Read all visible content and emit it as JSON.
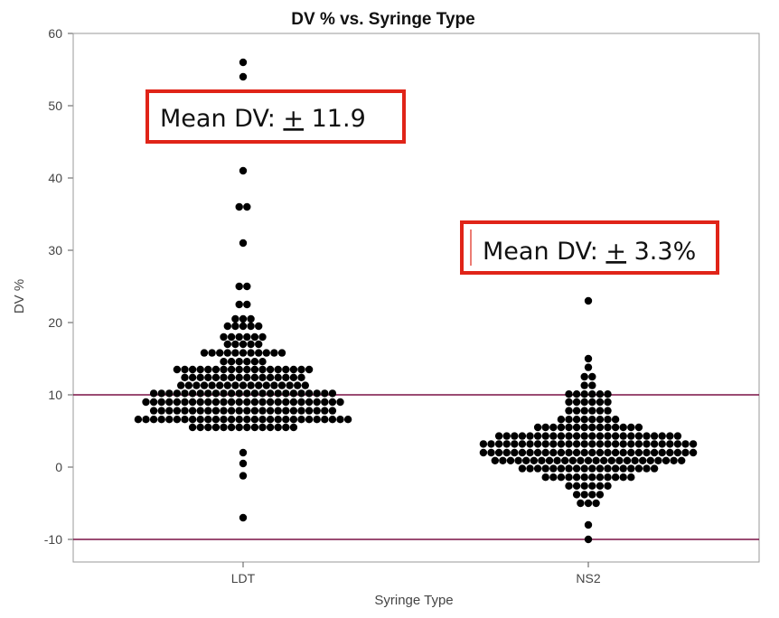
{
  "colors": {
    "point": "#000000",
    "reference_line": "#7a1045",
    "annotation_border": "#e02418",
    "frame": "#9a9a9a"
  },
  "chart_data": {
    "type": "scatter",
    "title": "DV % vs. Syringe Type",
    "xlabel": "Syringe Type",
    "ylabel": "DV %",
    "categories": [
      "LDT",
      "NS2"
    ],
    "ylim": [
      -13,
      60
    ],
    "yticks": [
      -10,
      0,
      10,
      20,
      30,
      40,
      50,
      60
    ],
    "grid": false,
    "reference_lines_y": [
      10,
      -10
    ],
    "series": [
      {
        "category": "LDT",
        "values_by_level": [
          {
            "y": 56,
            "count": 1
          },
          {
            "y": 54,
            "count": 1
          },
          {
            "y": 41,
            "count": 1
          },
          {
            "y": 36,
            "count": 2
          },
          {
            "y": 31,
            "count": 1
          },
          {
            "y": 25,
            "count": 2
          },
          {
            "y": 22.5,
            "count": 2
          },
          {
            "y": 20.5,
            "count": 3
          },
          {
            "y": 19.5,
            "count": 5
          },
          {
            "y": 18,
            "count": 6
          },
          {
            "y": 17,
            "count": 5
          },
          {
            "y": 15.8,
            "count": 11
          },
          {
            "y": 14.6,
            "count": 6
          },
          {
            "y": 13.5,
            "count": 18
          },
          {
            "y": 12.4,
            "count": 16
          },
          {
            "y": 11.3,
            "count": 17
          },
          {
            "y": 10.2,
            "count": 24
          },
          {
            "y": 9,
            "count": 26
          },
          {
            "y": 7.8,
            "count": 24
          },
          {
            "y": 6.6,
            "count": 28
          },
          {
            "y": 5.5,
            "count": 14
          },
          {
            "y": 2,
            "count": 1
          },
          {
            "y": 0.5,
            "count": 1
          },
          {
            "y": -1.2,
            "count": 1
          },
          {
            "y": -7,
            "count": 1
          }
        ]
      },
      {
        "category": "NS2",
        "values_by_level": [
          {
            "y": 23,
            "count": 1
          },
          {
            "y": 15,
            "count": 1
          },
          {
            "y": 13.8,
            "count": 1
          },
          {
            "y": 12.5,
            "count": 2
          },
          {
            "y": 11.3,
            "count": 2
          },
          {
            "y": 10.1,
            "count": 6
          },
          {
            "y": 9,
            "count": 6
          },
          {
            "y": 7.8,
            "count": 6
          },
          {
            "y": 6.6,
            "count": 8
          },
          {
            "y": 5.5,
            "count": 14
          },
          {
            "y": 4.3,
            "count": 24
          },
          {
            "y": 3.2,
            "count": 28
          },
          {
            "y": 2,
            "count": 28
          },
          {
            "y": 0.9,
            "count": 25
          },
          {
            "y": -0.2,
            "count": 18
          },
          {
            "y": -1.4,
            "count": 12
          },
          {
            "y": -2.6,
            "count": 6
          },
          {
            "y": -3.8,
            "count": 4
          },
          {
            "y": -5,
            "count": 3
          },
          {
            "y": -8,
            "count": 1
          },
          {
            "y": -10,
            "count": 1
          }
        ]
      }
    ],
    "annotations": [
      {
        "category": "LDT",
        "prefix": "Mean DV: ",
        "pm": "+",
        "value": " 11.9"
      },
      {
        "category": "NS2",
        "prefix": "Mean DV: ",
        "pm": "+",
        "value": " 3.3%"
      }
    ]
  }
}
